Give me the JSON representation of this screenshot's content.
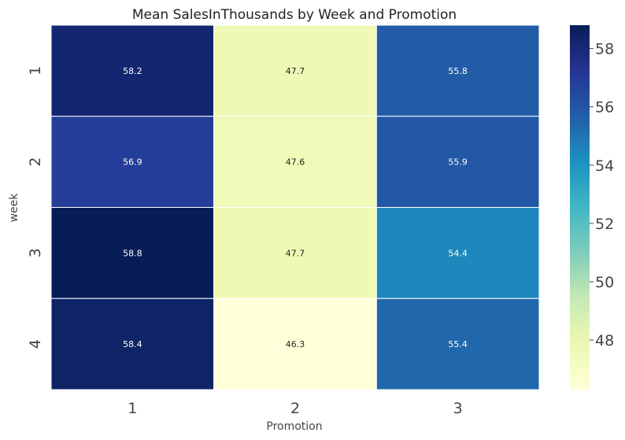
{
  "chart_data": {
    "type": "heatmap",
    "title": "Mean SalesInThousands by Week and Promotion",
    "xlabel": "Promotion",
    "ylabel": "week",
    "x_categories": [
      "1",
      "2",
      "3"
    ],
    "y_categories": [
      "1",
      "2",
      "3",
      "4"
    ],
    "values": [
      [
        58.2,
        47.7,
        55.8
      ],
      [
        56.9,
        47.6,
        55.9
      ],
      [
        58.8,
        47.7,
        54.4
      ],
      [
        58.4,
        46.3,
        55.4
      ]
    ],
    "value_labels": [
      [
        "58.2",
        "47.7",
        "55.8"
      ],
      [
        "56.9",
        "47.6",
        "55.9"
      ],
      [
        "58.8",
        "47.7",
        "54.4"
      ],
      [
        "58.4",
        "46.3",
        "55.4"
      ]
    ],
    "colormap": "YlGnBu",
    "colorbar": {
      "vmin": 46.3,
      "vmax": 58.8,
      "ticks": [
        48,
        50,
        52,
        54,
        56,
        58
      ],
      "tick_labels": [
        "48",
        "50",
        "52",
        "54",
        "56",
        "58"
      ]
    },
    "colormap_stops": [
      "#ffffd9",
      "#edf8b1",
      "#c7e9b4",
      "#7fcdbb",
      "#41b6c4",
      "#1d91c0",
      "#225ea8",
      "#253494",
      "#081d58"
    ],
    "cell_border_color": "#ffffff",
    "annotation_text_colors": {
      "dark_cell": "#ffffff",
      "light_cell": "#262626"
    },
    "legend": "colorbar-right"
  }
}
